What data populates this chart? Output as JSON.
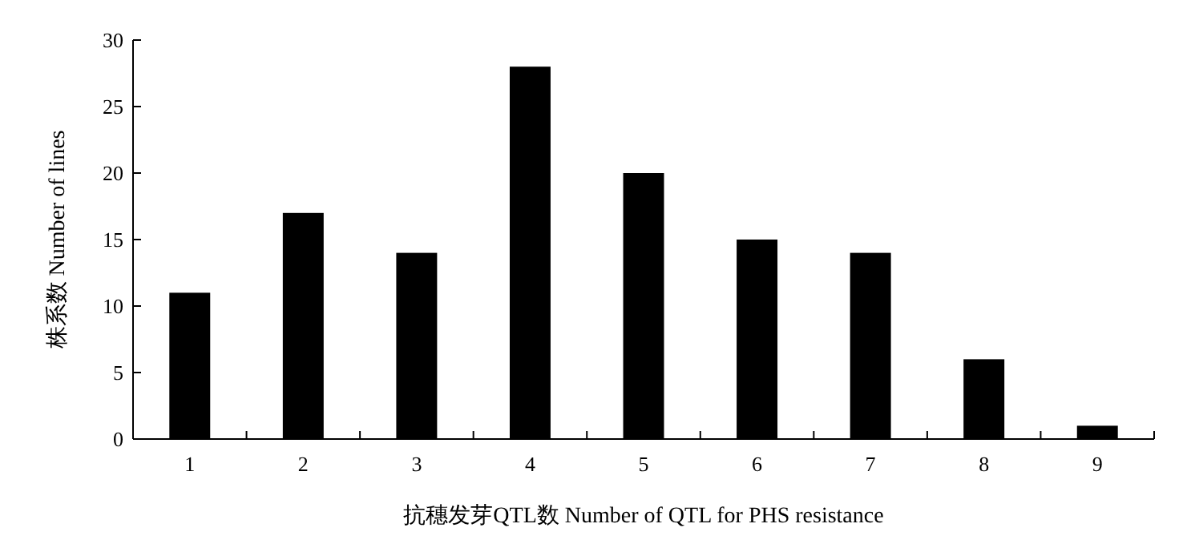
{
  "chart_data": {
    "type": "bar",
    "categories": [
      "1",
      "2",
      "3",
      "4",
      "5",
      "6",
      "7",
      "8",
      "9"
    ],
    "values": [
      11,
      17,
      14,
      28,
      20,
      15,
      14,
      6,
      1
    ],
    "color": "#000000",
    "ylim": [
      0,
      30
    ],
    "yticks": [
      0,
      5,
      10,
      15,
      20,
      25,
      30
    ],
    "xlabel": "抗穗发芽QTL数 Number of QTL for PHS resistance",
    "ylabel": "株系数 Number of lines"
  }
}
